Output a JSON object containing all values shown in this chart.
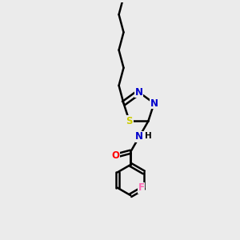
{
  "background_color": "#ebebeb",
  "bond_color": "#000000",
  "bond_width": 1.8,
  "atom_colors": {
    "N": "#0000cc",
    "S": "#cccc00",
    "O": "#ff0000",
    "F": "#ff69b4",
    "C": "#000000",
    "H": "#000000"
  },
  "font_size": 8.5,
  "fig_width": 3.0,
  "fig_height": 3.0,
  "dpi": 100
}
